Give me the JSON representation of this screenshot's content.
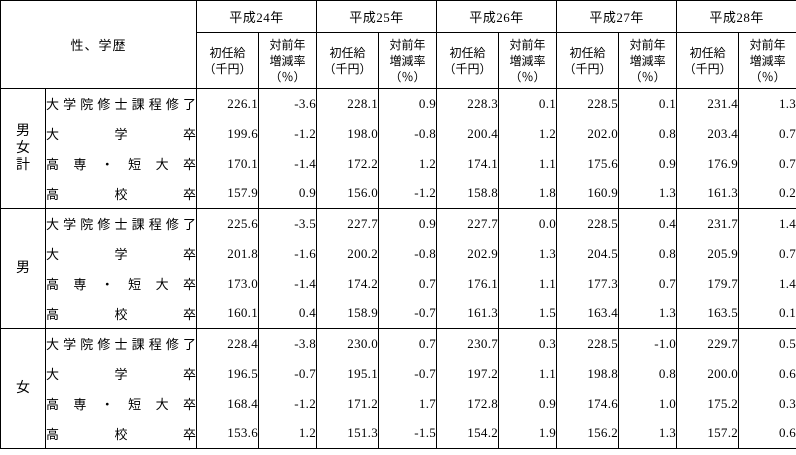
{
  "chart_data": {
    "type": "table",
    "corner_label": "性、学歴",
    "year_columns": [
      "平成24年",
      "平成25年",
      "平成26年",
      "平成27年",
      "平成28年"
    ],
    "sub_columns": [
      "初任給（千円）",
      "対前年増減率（％）"
    ],
    "row_groups": [
      {
        "group": "男女計",
        "rows": [
          {
            "education": "大学院修士課程修了",
            "values": [
              "226.1",
              "-3.6",
              "228.1",
              "0.9",
              "228.3",
              "0.1",
              "228.5",
              "0.1",
              "231.4",
              "1.3"
            ]
          },
          {
            "education": "大学卒",
            "values": [
              "199.6",
              "-1.2",
              "198.0",
              "-0.8",
              "200.4",
              "1.2",
              "202.0",
              "0.8",
              "203.4",
              "0.7"
            ]
          },
          {
            "education": "高専・短大卒",
            "values": [
              "170.1",
              "-1.4",
              "172.2",
              "1.2",
              "174.1",
              "1.1",
              "175.6",
              "0.9",
              "176.9",
              "0.7"
            ]
          },
          {
            "education": "高校卒",
            "values": [
              "157.9",
              "0.9",
              "156.0",
              "-1.2",
              "158.8",
              "1.8",
              "160.9",
              "1.3",
              "161.3",
              "0.2"
            ]
          }
        ]
      },
      {
        "group": "男",
        "rows": [
          {
            "education": "大学院修士課程修了",
            "values": [
              "225.6",
              "-3.5",
              "227.7",
              "0.9",
              "227.7",
              "0.0",
              "228.5",
              "0.4",
              "231.7",
              "1.4"
            ]
          },
          {
            "education": "大学卒",
            "values": [
              "201.8",
              "-1.6",
              "200.2",
              "-0.8",
              "202.9",
              "1.3",
              "204.5",
              "0.8",
              "205.9",
              "0.7"
            ]
          },
          {
            "education": "高専・短大卒",
            "values": [
              "173.0",
              "-1.4",
              "174.2",
              "0.7",
              "176.1",
              "1.1",
              "177.3",
              "0.7",
              "179.7",
              "1.4"
            ]
          },
          {
            "education": "高校卒",
            "values": [
              "160.1",
              "0.4",
              "158.9",
              "-0.7",
              "161.3",
              "1.5",
              "163.4",
              "1.3",
              "163.5",
              "0.1"
            ]
          }
        ]
      },
      {
        "group": "女",
        "rows": [
          {
            "education": "大学院修士課程修了",
            "values": [
              "228.4",
              "-3.8",
              "230.0",
              "0.7",
              "230.7",
              "0.3",
              "228.5",
              "-1.0",
              "229.7",
              "0.5"
            ]
          },
          {
            "education": "大学卒",
            "values": [
              "196.5",
              "-0.7",
              "195.1",
              "-0.7",
              "197.2",
              "1.1",
              "198.8",
              "0.8",
              "200.0",
              "0.6"
            ]
          },
          {
            "education": "高専・短大卒",
            "values": [
              "168.4",
              "-1.2",
              "171.2",
              "1.7",
              "172.8",
              "0.9",
              "174.6",
              "1.0",
              "175.2",
              "0.3"
            ]
          },
          {
            "education": "高校卒",
            "values": [
              "153.6",
              "1.2",
              "151.3",
              "-1.5",
              "154.2",
              "1.9",
              "156.2",
              "1.3",
              "157.2",
              "0.6"
            ]
          }
        ]
      }
    ]
  },
  "header_display": {
    "initial_salary": "初任給\n（千円）",
    "rate": "対前年\n増減率\n（％）"
  },
  "colors": {
    "border": "#000000",
    "text": "#000000",
    "background": "#ffffff"
  }
}
